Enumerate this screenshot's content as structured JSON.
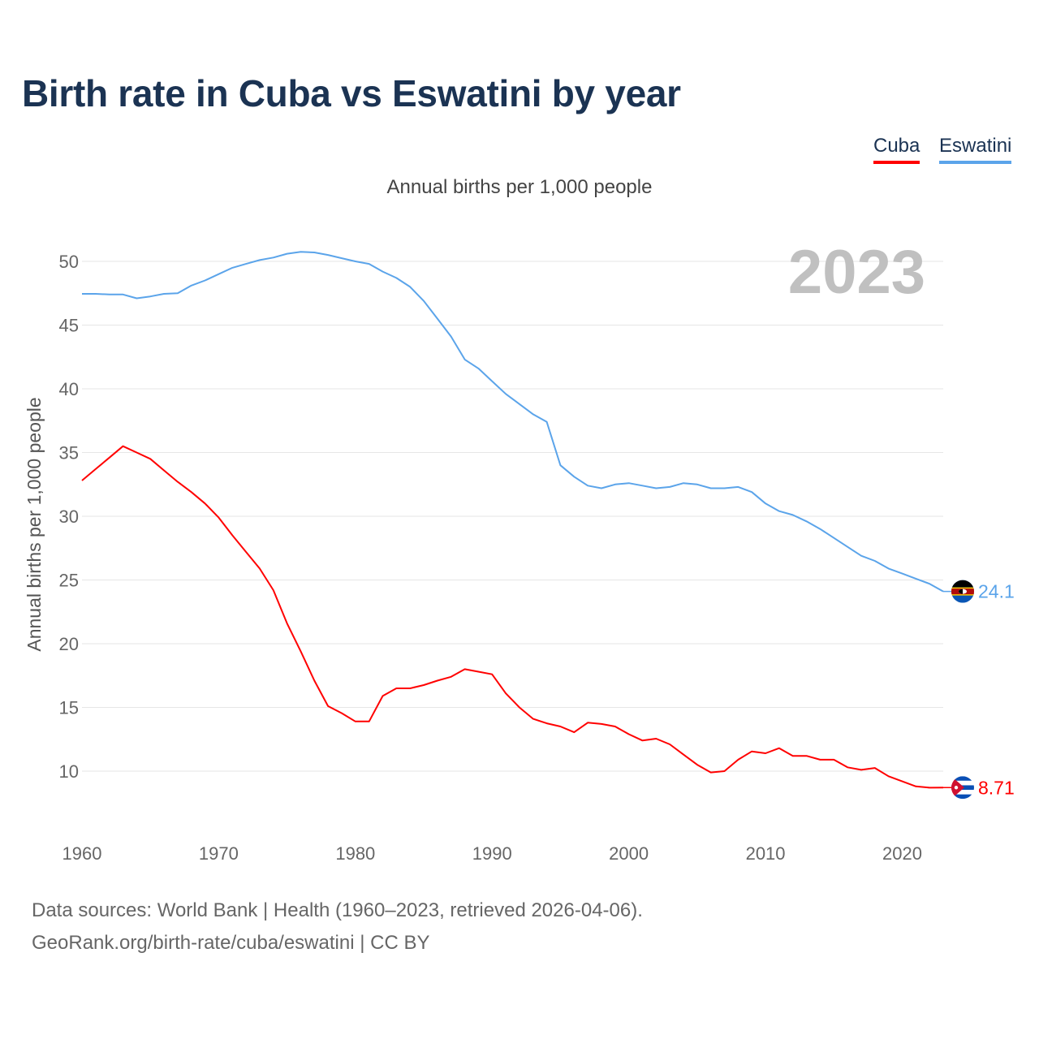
{
  "title": "Birth rate in Cuba vs Eswatini by year",
  "footer": {
    "line1": "Data sources: World Bank | Health (1960–2023, retrieved 2026-04-06).",
    "line2": "GeoRank.org/birth-rate/cuba/eswatini | CC BY"
  },
  "chart_data": {
    "type": "line",
    "title": "Birth rate in Cuba vs Eswatini by year",
    "subtitle": "Annual births per 1,000 people",
    "ylabel": "Annual births per 1,000 people",
    "xlabel": "",
    "year_watermark": "2023",
    "xlim": [
      1960,
      2023
    ],
    "ylim": [
      6,
      53
    ],
    "x_ticks": [
      "1960",
      "1970",
      "1980",
      "1990",
      "2000",
      "2010",
      "2020"
    ],
    "y_ticks": [
      "10",
      "15",
      "20",
      "25",
      "30",
      "35",
      "40",
      "45",
      "50"
    ],
    "grid": true,
    "legend_position": "top-right",
    "x": [
      1960,
      1961,
      1962,
      1963,
      1964,
      1965,
      1966,
      1967,
      1968,
      1969,
      1970,
      1971,
      1972,
      1973,
      1974,
      1975,
      1976,
      1977,
      1978,
      1979,
      1980,
      1981,
      1982,
      1983,
      1984,
      1985,
      1986,
      1987,
      1988,
      1989,
      1990,
      1991,
      1992,
      1993,
      1994,
      1995,
      1996,
      1997,
      1998,
      1999,
      2000,
      2001,
      2002,
      2003,
      2004,
      2005,
      2006,
      2007,
      2008,
      2009,
      2010,
      2011,
      2012,
      2013,
      2014,
      2015,
      2016,
      2017,
      2018,
      2019,
      2020,
      2021,
      2022,
      2023
    ],
    "series": [
      {
        "name": "Cuba",
        "color": "#ff0000",
        "end_label": "8.71",
        "values": [
          32.8,
          33.7,
          34.6,
          35.5,
          35.0,
          34.5,
          33.6,
          32.7,
          31.9,
          31.0,
          29.9,
          28.5,
          27.2,
          25.9,
          24.2,
          21.6,
          19.4,
          17.1,
          15.1,
          14.55,
          13.9,
          13.9,
          15.9,
          16.5,
          16.5,
          16.75,
          17.1,
          17.4,
          18.0,
          17.8,
          17.6,
          16.1,
          15.0,
          14.1,
          13.75,
          13.5,
          13.05,
          13.8,
          13.7,
          13.5,
          12.9,
          12.4,
          12.55,
          12.1,
          11.3,
          10.5,
          9.9,
          10.0,
          10.9,
          11.55,
          11.4,
          11.8,
          11.2,
          11.2,
          10.9,
          10.9,
          10.3,
          10.1,
          10.25,
          9.6,
          9.2,
          8.8,
          8.7,
          8.71
        ]
      },
      {
        "name": "Eswatini",
        "color": "#5ba4ea",
        "end_label": "24.1",
        "values": [
          47.45,
          47.45,
          47.4,
          47.4,
          47.1,
          47.25,
          47.45,
          47.5,
          48.1,
          48.5,
          49.0,
          49.5,
          49.8,
          50.1,
          50.3,
          50.6,
          50.75,
          50.7,
          50.5,
          50.25,
          50.0,
          49.8,
          49.2,
          48.7,
          48.0,
          46.9,
          45.5,
          44.1,
          42.3,
          41.6,
          40.6,
          39.6,
          38.8,
          38.0,
          37.4,
          34.0,
          33.1,
          32.4,
          32.2,
          32.5,
          32.6,
          32.4,
          32.2,
          32.3,
          32.6,
          32.5,
          32.2,
          32.2,
          32.3,
          31.9,
          31.0,
          30.4,
          30.1,
          29.6,
          29.0,
          28.3,
          27.6,
          26.9,
          26.5,
          25.9,
          25.5,
          25.1,
          24.7,
          24.1
        ]
      }
    ]
  }
}
